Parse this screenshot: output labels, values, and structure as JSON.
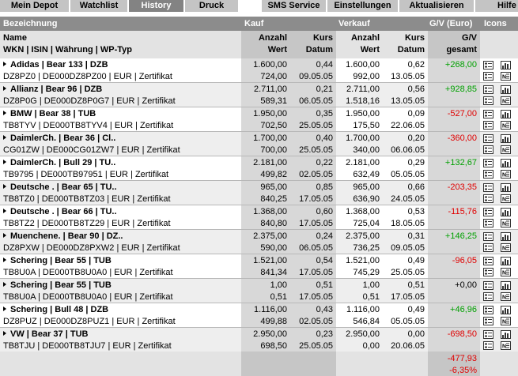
{
  "tabs": [
    {
      "label": "Mein Depot",
      "active": false
    },
    {
      "label": "Watchlist",
      "active": false
    },
    {
      "label": "History",
      "active": true
    },
    {
      "label": "Druck",
      "active": false
    },
    {
      "label": "SMS Service",
      "active": false
    },
    {
      "label": "Einstellungen",
      "active": false
    },
    {
      "label": "Aktualisieren",
      "active": false
    },
    {
      "label": "Hilfe",
      "active": false
    }
  ],
  "header": {
    "bezeichnung": "Bezeichnung",
    "kauf": "Kauf",
    "verkauf": "Verkauf",
    "gv_euro": "G/V (Euro)",
    "icons": "Icons",
    "name": "Name",
    "wkn_line": "WKN | ISIN | Währung | WP-Typ",
    "anzahl": "Anzahl",
    "wert": "Wert",
    "kurs": "Kurs",
    "datum": "Datum",
    "gv": "G/V",
    "gesamt": "gesamt"
  },
  "rows": [
    {
      "name": "Adidas | Bear 133 | DZB",
      "wkn": "DZ8PZ0 | DE000DZ8PZ00 | EUR | Zertifikat",
      "k_anz": "1.600,00",
      "k_wert": "724,00",
      "k_kurs": "0,44",
      "k_datum": "09.05.05",
      "v_anz": "1.600,00",
      "v_wert": "992,00",
      "v_kurs": "0,62",
      "v_datum": "13.05.05",
      "gv": "+268,00",
      "sign": "pos"
    },
    {
      "name": "Allianz | Bear 96 | DZB",
      "wkn": "DZ8P0G | DE000DZ8P0G7 | EUR | Zertifikat",
      "k_anz": "2.711,00",
      "k_wert": "589,31",
      "k_kurs": "0,21",
      "k_datum": "06.05.05",
      "v_anz": "2.711,00",
      "v_wert": "1.518,16",
      "v_kurs": "0,56",
      "v_datum": "13.05.05",
      "gv": "+928,85",
      "sign": "pos"
    },
    {
      "name": "BMW | Bear 38 | TUB",
      "wkn": "TB8TYV | DE000TB8TYV4 | EUR | Zertifikat",
      "k_anz": "1.950,00",
      "k_wert": "702,50",
      "k_kurs": "0,35",
      "k_datum": "25.05.05",
      "v_anz": "1.950,00",
      "v_wert": "175,50",
      "v_kurs": "0,09",
      "v_datum": "22.06.05",
      "gv": "-527,00",
      "sign": "neg"
    },
    {
      "name": "DaimlerCh. | Bear 36 | Cl..",
      "wkn": "CG01ZW | DE000CG01ZW7 | EUR | Zertifikat",
      "k_anz": "1.700,00",
      "k_wert": "700,00",
      "k_kurs": "0,40",
      "k_datum": "25.05.05",
      "v_anz": "1.700,00",
      "v_wert": "340,00",
      "v_kurs": "0,20",
      "v_datum": "06.06.05",
      "gv": "-360,00",
      "sign": "neg"
    },
    {
      "name": "DaimlerCh. | Bull 29 | TU..",
      "wkn": "TB9795 | DE000TB97951 | EUR | Zertifikat",
      "k_anz": "2.181,00",
      "k_wert": "499,82",
      "k_kurs": "0,22",
      "k_datum": "02.05.05",
      "v_anz": "2.181,00",
      "v_wert": "632,49",
      "v_kurs": "0,29",
      "v_datum": "05.05.05",
      "gv": "+132,67",
      "sign": "pos"
    },
    {
      "name": "Deutsche . | Bear 65 | TU..",
      "wkn": "TB8TZ0 | DE000TB8TZ03 | EUR | Zertifikat",
      "k_anz": "965,00",
      "k_wert": "840,25",
      "k_kurs": "0,85",
      "k_datum": "17.05.05",
      "v_anz": "965,00",
      "v_wert": "636,90",
      "v_kurs": "0,66",
      "v_datum": "24.05.05",
      "gv": "-203,35",
      "sign": "neg"
    },
    {
      "name": "Deutsche . | Bear 66 | TU..",
      "wkn": "TB8TZ2 | DE000TB8TZ29 | EUR | Zertifikat",
      "k_anz": "1.368,00",
      "k_wert": "840,80",
      "k_kurs": "0,60",
      "k_datum": "17.05.05",
      "v_anz": "1.368,00",
      "v_wert": "725,04",
      "v_kurs": "0,53",
      "v_datum": "18.05.05",
      "gv": "-115,76",
      "sign": "neg"
    },
    {
      "name": "Muenchene. | Bear 90 | DZ..",
      "wkn": "DZ8PXW | DE000DZ8PXW2 | EUR | Zertifikat",
      "k_anz": "2.375,00",
      "k_wert": "590,00",
      "k_kurs": "0,24",
      "k_datum": "06.05.05",
      "v_anz": "2.375,00",
      "v_wert": "736,25",
      "v_kurs": "0,31",
      "v_datum": "09.05.05",
      "gv": "+146,25",
      "sign": "pos"
    },
    {
      "name": "Schering | Bear 55 | TUB",
      "wkn": "TB8U0A | DE000TB8U0A0 | EUR | Zertifikat",
      "k_anz": "1.521,00",
      "k_wert": "841,34",
      "k_kurs": "0,54",
      "k_datum": "17.05.05",
      "v_anz": "1.521,00",
      "v_wert": "745,29",
      "v_kurs": "0,49",
      "v_datum": "25.05.05",
      "gv": "-96,05",
      "sign": "neg"
    },
    {
      "name": "Schering | Bear 55 | TUB",
      "wkn": "TB8U0A | DE000TB8U0A0 | EUR | Zertifikat",
      "k_anz": "1,00",
      "k_wert": "0,51",
      "k_kurs": "0,51",
      "k_datum": "17.05.05",
      "v_anz": "1,00",
      "v_wert": "0,51",
      "v_kurs": "0,51",
      "v_datum": "17.05.05",
      "gv": "+0,00",
      "sign": "zero"
    },
    {
      "name": "Schering | Bull 48 | DZB",
      "wkn": "DZ8PUZ | DE000DZ8PUZ1 | EUR | Zertifikat",
      "k_anz": "1.116,00",
      "k_wert": "499,88",
      "k_kurs": "0,43",
      "k_datum": "02.05.05",
      "v_anz": "1.116,00",
      "v_wert": "546,84",
      "v_kurs": "0,49",
      "v_datum": "05.05.05",
      "gv": "+46,96",
      "sign": "pos"
    },
    {
      "name": "VW | Bear 37 | TUB",
      "wkn": "TB8TJU | DE000TB8TJU7 | EUR | Zertifikat",
      "k_anz": "2.950,00",
      "k_wert": "698,50",
      "k_kurs": "0,23",
      "k_datum": "25.05.05",
      "v_anz": "2.950,00",
      "v_wert": "0,00",
      "v_kurs": "0,00",
      "v_datum": "20.06.05",
      "gv": "-698,50",
      "sign": "neg"
    }
  ],
  "footer": {
    "gv_total": "-477,93",
    "gv_pct": "-6,35%"
  },
  "colors": {
    "positive": "#00a000",
    "negative": "#e00000",
    "header_dark": "#8c8c8c",
    "tab_active": "#838383"
  }
}
